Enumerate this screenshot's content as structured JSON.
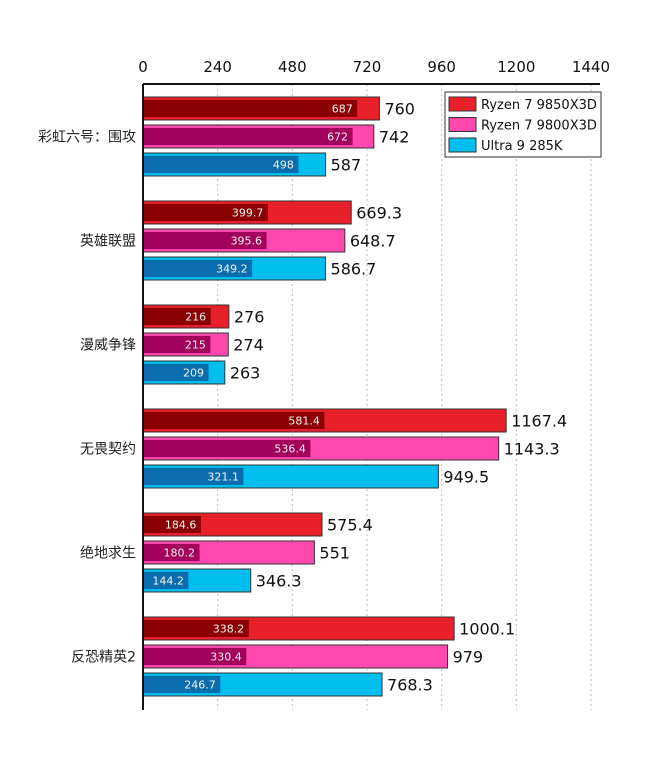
{
  "chart_data": {
    "type": "bar",
    "orientation": "horizontal",
    "title": "",
    "xlabel": "",
    "ylabel": "",
    "xlim": [
      0,
      1440
    ],
    "xticks": [
      0,
      240,
      480,
      720,
      960,
      1200,
      1440
    ],
    "xtick_labels": [
      "0",
      "240",
      "480",
      "720",
      "960",
      "1200",
      "1440"
    ],
    "x_axis_position": "top",
    "grid": "vertical dotted",
    "legend_position": "top-right",
    "categories": [
      "彩虹六号：围攻",
      "英雄联盟",
      "漫威争锋",
      "无畏契约",
      "绝地求生",
      "反恐精英2"
    ],
    "series": [
      {
        "name": "Ryzen 7 9850X3D",
        "color": "#E8202A",
        "inner_color": "#8B0000",
        "values": [
          760,
          669.3,
          276,
          1167.4,
          575.4,
          1000.1
        ],
        "value_labels": [
          "760",
          "669.3",
          "276",
          "1167.4",
          "575.4",
          "1000.1"
        ],
        "inner_values": [
          687,
          399.7,
          216,
          581.4,
          184.6,
          338.2
        ],
        "inner_labels": [
          "687",
          "399.7",
          "216",
          "581.4",
          "184.6",
          "338.2"
        ]
      },
      {
        "name": "Ryzen 7 9800X3D",
        "color": "#FF48AE",
        "inner_color": "#A3005C",
        "values": [
          742,
          648.7,
          274,
          1143.3,
          551,
          979
        ],
        "value_labels": [
          "742",
          "648.7",
          "274",
          "1143.3",
          "551",
          "979"
        ],
        "inner_values": [
          672,
          395.6,
          215,
          536.4,
          180.2,
          330.4
        ],
        "inner_labels": [
          "672",
          "395.6",
          "215",
          "536.4",
          "180.2",
          "330.4"
        ]
      },
      {
        "name": "Ultra 9 285K",
        "color": "#00BFEF",
        "inner_color": "#0B6DAE",
        "values": [
          587,
          586.7,
          263,
          949.5,
          346.3,
          768.3
        ],
        "value_labels": [
          "587",
          "586.7",
          "263",
          "949.5",
          "346.3",
          "768.3"
        ],
        "inner_values": [
          498,
          349.2,
          209,
          321.1,
          144.2,
          246.7
        ],
        "inner_labels": [
          "498",
          "349.2",
          "209",
          "321.1",
          "144.2",
          "246.7"
        ]
      }
    ]
  }
}
